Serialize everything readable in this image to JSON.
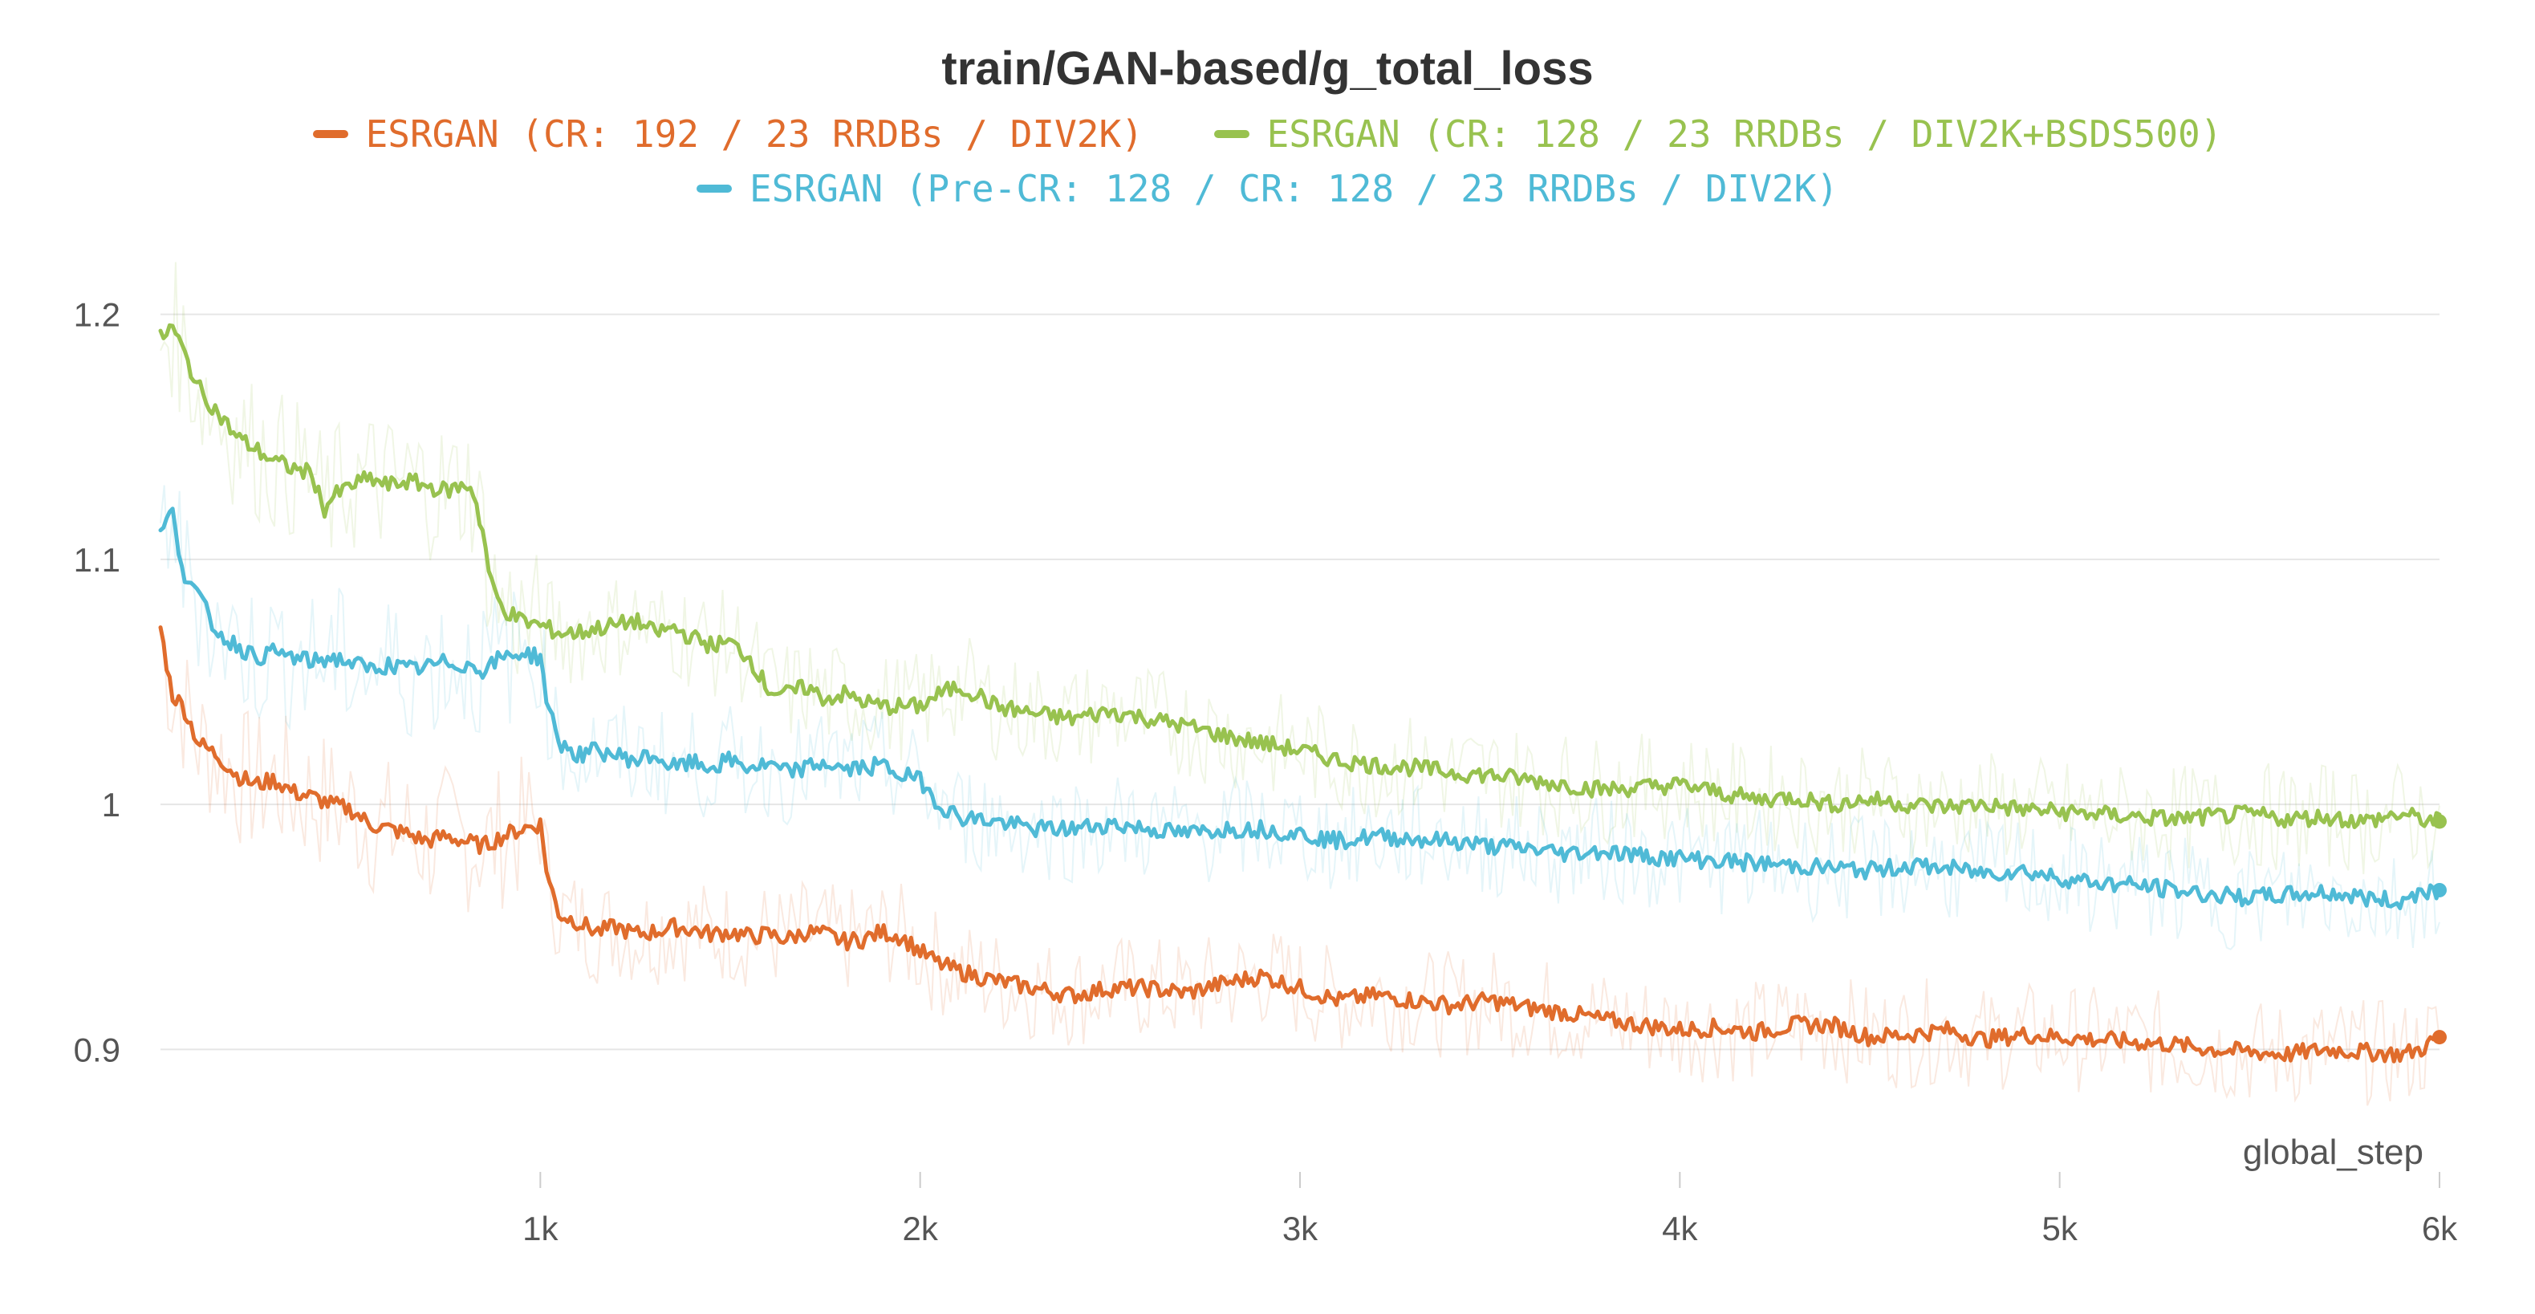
{
  "chart_data": {
    "type": "line",
    "title": "train/GAN-based/g_total_loss",
    "xlabel": "global_step",
    "ylabel": "",
    "xlim": [
      0,
      6000
    ],
    "ylim": [
      0.85,
      1.23
    ],
    "grid": true,
    "legend_position": "top",
    "x_ticks": [
      {
        "value": 1000,
        "label": "1k"
      },
      {
        "value": 2000,
        "label": "2k"
      },
      {
        "value": 3000,
        "label": "3k"
      },
      {
        "value": 4000,
        "label": "4k"
      },
      {
        "value": 5000,
        "label": "5k"
      },
      {
        "value": 6000,
        "label": "6k"
      }
    ],
    "y_ticks": [
      {
        "value": 0.9,
        "label": "0.9"
      },
      {
        "value": 1.0,
        "label": "1"
      },
      {
        "value": 1.1,
        "label": "1.1"
      },
      {
        "value": 1.2,
        "label": "1.2"
      }
    ],
    "series": [
      {
        "name": "ESRGAN (CR: 192 / 23 RRDBs / DIV2K)",
        "color": "#e06c2c",
        "points": [
          [
            0,
            1.072
          ],
          [
            30,
            1.045
          ],
          [
            60,
            1.04
          ],
          [
            100,
            1.025
          ],
          [
            150,
            1.02
          ],
          [
            200,
            1.012
          ],
          [
            250,
            1.008
          ],
          [
            300,
            1.01
          ],
          [
            350,
            1.005
          ],
          [
            400,
            1.003
          ],
          [
            450,
            1.0
          ],
          [
            500,
            0.998
          ],
          [
            550,
            0.992
          ],
          [
            600,
            0.99
          ],
          [
            650,
            0.988
          ],
          [
            700,
            0.985
          ],
          [
            750,
            0.987
          ],
          [
            800,
            0.985
          ],
          [
            850,
            0.983
          ],
          [
            900,
            0.987
          ],
          [
            950,
            0.99
          ],
          [
            1000,
            0.992
          ],
          [
            1020,
            0.97
          ],
          [
            1050,
            0.955
          ],
          [
            1100,
            0.952
          ],
          [
            1150,
            0.948
          ],
          [
            1200,
            0.95
          ],
          [
            1250,
            0.947
          ],
          [
            1300,
            0.948
          ],
          [
            1350,
            0.95
          ],
          [
            1400,
            0.949
          ],
          [
            1450,
            0.947
          ],
          [
            1500,
            0.948
          ],
          [
            1550,
            0.946
          ],
          [
            1600,
            0.947
          ],
          [
            1650,
            0.945
          ],
          [
            1700,
            0.948
          ],
          [
            1750,
            0.947
          ],
          [
            1800,
            0.944
          ],
          [
            1850,
            0.945
          ],
          [
            1900,
            0.948
          ],
          [
            1950,
            0.946
          ],
          [
            2000,
            0.94
          ],
          [
            2050,
            0.935
          ],
          [
            2100,
            0.932
          ],
          [
            2200,
            0.928
          ],
          [
            2300,
            0.925
          ],
          [
            2400,
            0.922
          ],
          [
            2500,
            0.925
          ],
          [
            2600,
            0.925
          ],
          [
            2700,
            0.923
          ],
          [
            2800,
            0.927
          ],
          [
            2900,
            0.93
          ],
          [
            3000,
            0.925
          ],
          [
            3100,
            0.92
          ],
          [
            3200,
            0.922
          ],
          [
            3300,
            0.92
          ],
          [
            3400,
            0.918
          ],
          [
            3500,
            0.92
          ],
          [
            3600,
            0.917
          ],
          [
            3700,
            0.915
          ],
          [
            3800,
            0.912
          ],
          [
            3900,
            0.91
          ],
          [
            4000,
            0.908
          ],
          [
            4100,
            0.909
          ],
          [
            4200,
            0.907
          ],
          [
            4300,
            0.91
          ],
          [
            4400,
            0.91
          ],
          [
            4500,
            0.905
          ],
          [
            4600,
            0.906
          ],
          [
            4700,
            0.908
          ],
          [
            4800,
            0.904
          ],
          [
            4900,
            0.906
          ],
          [
            5000,
            0.905
          ],
          [
            5100,
            0.904
          ],
          [
            5200,
            0.903
          ],
          [
            5300,
            0.902
          ],
          [
            5400,
            0.9
          ],
          [
            5500,
            0.899
          ],
          [
            5600,
            0.898
          ],
          [
            5700,
            0.9
          ],
          [
            5800,
            0.899
          ],
          [
            5900,
            0.898
          ],
          [
            5950,
            0.9
          ],
          [
            6000,
            0.905
          ]
        ]
      },
      {
        "name": "ESRGAN (CR: 128 / 23 RRDBs / DIV2K+BSDS500)",
        "color": "#98c24f",
        "points": [
          [
            0,
            1.19
          ],
          [
            30,
            1.195
          ],
          [
            60,
            1.185
          ],
          [
            100,
            1.17
          ],
          [
            150,
            1.16
          ],
          [
            200,
            1.15
          ],
          [
            250,
            1.145
          ],
          [
            300,
            1.14
          ],
          [
            350,
            1.137
          ],
          [
            400,
            1.135
          ],
          [
            430,
            1.12
          ],
          [
            450,
            1.125
          ],
          [
            500,
            1.13
          ],
          [
            550,
            1.133
          ],
          [
            600,
            1.13
          ],
          [
            650,
            1.132
          ],
          [
            700,
            1.13
          ],
          [
            750,
            1.128
          ],
          [
            800,
            1.13
          ],
          [
            820,
            1.13
          ],
          [
            850,
            1.11
          ],
          [
            870,
            1.09
          ],
          [
            900,
            1.08
          ],
          [
            950,
            1.075
          ],
          [
            1000,
            1.073
          ],
          [
            1050,
            1.07
          ],
          [
            1100,
            1.07
          ],
          [
            1150,
            1.072
          ],
          [
            1200,
            1.073
          ],
          [
            1250,
            1.075
          ],
          [
            1300,
            1.07
          ],
          [
            1350,
            1.072
          ],
          [
            1400,
            1.068
          ],
          [
            1450,
            1.065
          ],
          [
            1500,
            1.066
          ],
          [
            1550,
            1.06
          ],
          [
            1600,
            1.047
          ],
          [
            1650,
            1.045
          ],
          [
            1700,
            1.048
          ],
          [
            1750,
            1.043
          ],
          [
            1800,
            1.045
          ],
          [
            1850,
            1.042
          ],
          [
            1900,
            1.04
          ],
          [
            2000,
            1.04
          ],
          [
            2050,
            1.045
          ],
          [
            2100,
            1.048
          ],
          [
            2150,
            1.045
          ],
          [
            2200,
            1.04
          ],
          [
            2300,
            1.037
          ],
          [
            2400,
            1.035
          ],
          [
            2500,
            1.038
          ],
          [
            2600,
            1.035
          ],
          [
            2700,
            1.032
          ],
          [
            2800,
            1.028
          ],
          [
            2900,
            1.025
          ],
          [
            3000,
            1.022
          ],
          [
            3100,
            1.018
          ],
          [
            3200,
            1.016
          ],
          [
            3300,
            1.015
          ],
          [
            3400,
            1.013
          ],
          [
            3500,
            1.012
          ],
          [
            3600,
            1.01
          ],
          [
            3700,
            1.008
          ],
          [
            3800,
            1.006
          ],
          [
            3900,
            1.007
          ],
          [
            4000,
            1.008
          ],
          [
            4100,
            1.005
          ],
          [
            4200,
            1.002
          ],
          [
            4300,
            1.003
          ],
          [
            4400,
            1.0
          ],
          [
            4500,
            1.002
          ],
          [
            4600,
            1.0
          ],
          [
            4700,
            0.999
          ],
          [
            4800,
            1.0
          ],
          [
            4900,
            0.998
          ],
          [
            5000,
            0.997
          ],
          [
            5100,
            0.996
          ],
          [
            5200,
            0.995
          ],
          [
            5300,
            0.994
          ],
          [
            5400,
            0.995
          ],
          [
            5500,
            0.996
          ],
          [
            5600,
            0.994
          ],
          [
            5700,
            0.995
          ],
          [
            5800,
            0.993
          ],
          [
            5900,
            0.996
          ],
          [
            5950,
            0.994
          ],
          [
            6000,
            0.993
          ]
        ]
      },
      {
        "name": "ESRGAN (Pre-CR: 128 / CR: 128 / 23 RRDBs / DIV2K)",
        "color": "#4fbad6",
        "points": [
          [
            0,
            1.11
          ],
          [
            30,
            1.12
          ],
          [
            60,
            1.095
          ],
          [
            100,
            1.085
          ],
          [
            150,
            1.07
          ],
          [
            200,
            1.065
          ],
          [
            250,
            1.06
          ],
          [
            300,
            1.062
          ],
          [
            350,
            1.06
          ],
          [
            400,
            1.058
          ],
          [
            450,
            1.06
          ],
          [
            500,
            1.058
          ],
          [
            550,
            1.055
          ],
          [
            600,
            1.057
          ],
          [
            650,
            1.055
          ],
          [
            700,
            1.056
          ],
          [
            750,
            1.058
          ],
          [
            800,
            1.057
          ],
          [
            850,
            1.055
          ],
          [
            900,
            1.06
          ],
          [
            950,
            1.062
          ],
          [
            1000,
            1.06
          ],
          [
            1020,
            1.04
          ],
          [
            1050,
            1.025
          ],
          [
            1100,
            1.02
          ],
          [
            1150,
            1.022
          ],
          [
            1200,
            1.02
          ],
          [
            1250,
            1.018
          ],
          [
            1300,
            1.02
          ],
          [
            1350,
            1.015
          ],
          [
            1400,
            1.017
          ],
          [
            1450,
            1.015
          ],
          [
            1500,
            1.018
          ],
          [
            1550,
            1.015
          ],
          [
            1600,
            1.016
          ],
          [
            1650,
            1.013
          ],
          [
            1700,
            1.015
          ],
          [
            1750,
            1.017
          ],
          [
            1800,
            1.014
          ],
          [
            1850,
            1.015
          ],
          [
            1900,
            1.016
          ],
          [
            1950,
            1.012
          ],
          [
            2000,
            1.01
          ],
          [
            2050,
            1.0
          ],
          [
            2100,
            0.995
          ],
          [
            2200,
            0.993
          ],
          [
            2300,
            0.99
          ],
          [
            2400,
            0.99
          ],
          [
            2500,
            0.992
          ],
          [
            2600,
            0.99
          ],
          [
            2700,
            0.988
          ],
          [
            2800,
            0.99
          ],
          [
            2900,
            0.99
          ],
          [
            3000,
            0.988
          ],
          [
            3100,
            0.985
          ],
          [
            3200,
            0.987
          ],
          [
            3300,
            0.986
          ],
          [
            3400,
            0.985
          ],
          [
            3500,
            0.983
          ],
          [
            3600,
            0.982
          ],
          [
            3700,
            0.98
          ],
          [
            3800,
            0.981
          ],
          [
            3900,
            0.979
          ],
          [
            4000,
            0.978
          ],
          [
            4100,
            0.977
          ],
          [
            4200,
            0.976
          ],
          [
            4300,
            0.975
          ],
          [
            4400,
            0.974
          ],
          [
            4500,
            0.973
          ],
          [
            4600,
            0.975
          ],
          [
            4700,
            0.974
          ],
          [
            4800,
            0.972
          ],
          [
            4900,
            0.973
          ],
          [
            5000,
            0.97
          ],
          [
            5100,
            0.968
          ],
          [
            5200,
            0.967
          ],
          [
            5300,
            0.965
          ],
          [
            5400,
            0.963
          ],
          [
            5500,
            0.962
          ],
          [
            5600,
            0.963
          ],
          [
            5700,
            0.964
          ],
          [
            5800,
            0.962
          ],
          [
            5900,
            0.96
          ],
          [
            5950,
            0.965
          ],
          [
            6000,
            0.965
          ]
        ]
      }
    ]
  }
}
